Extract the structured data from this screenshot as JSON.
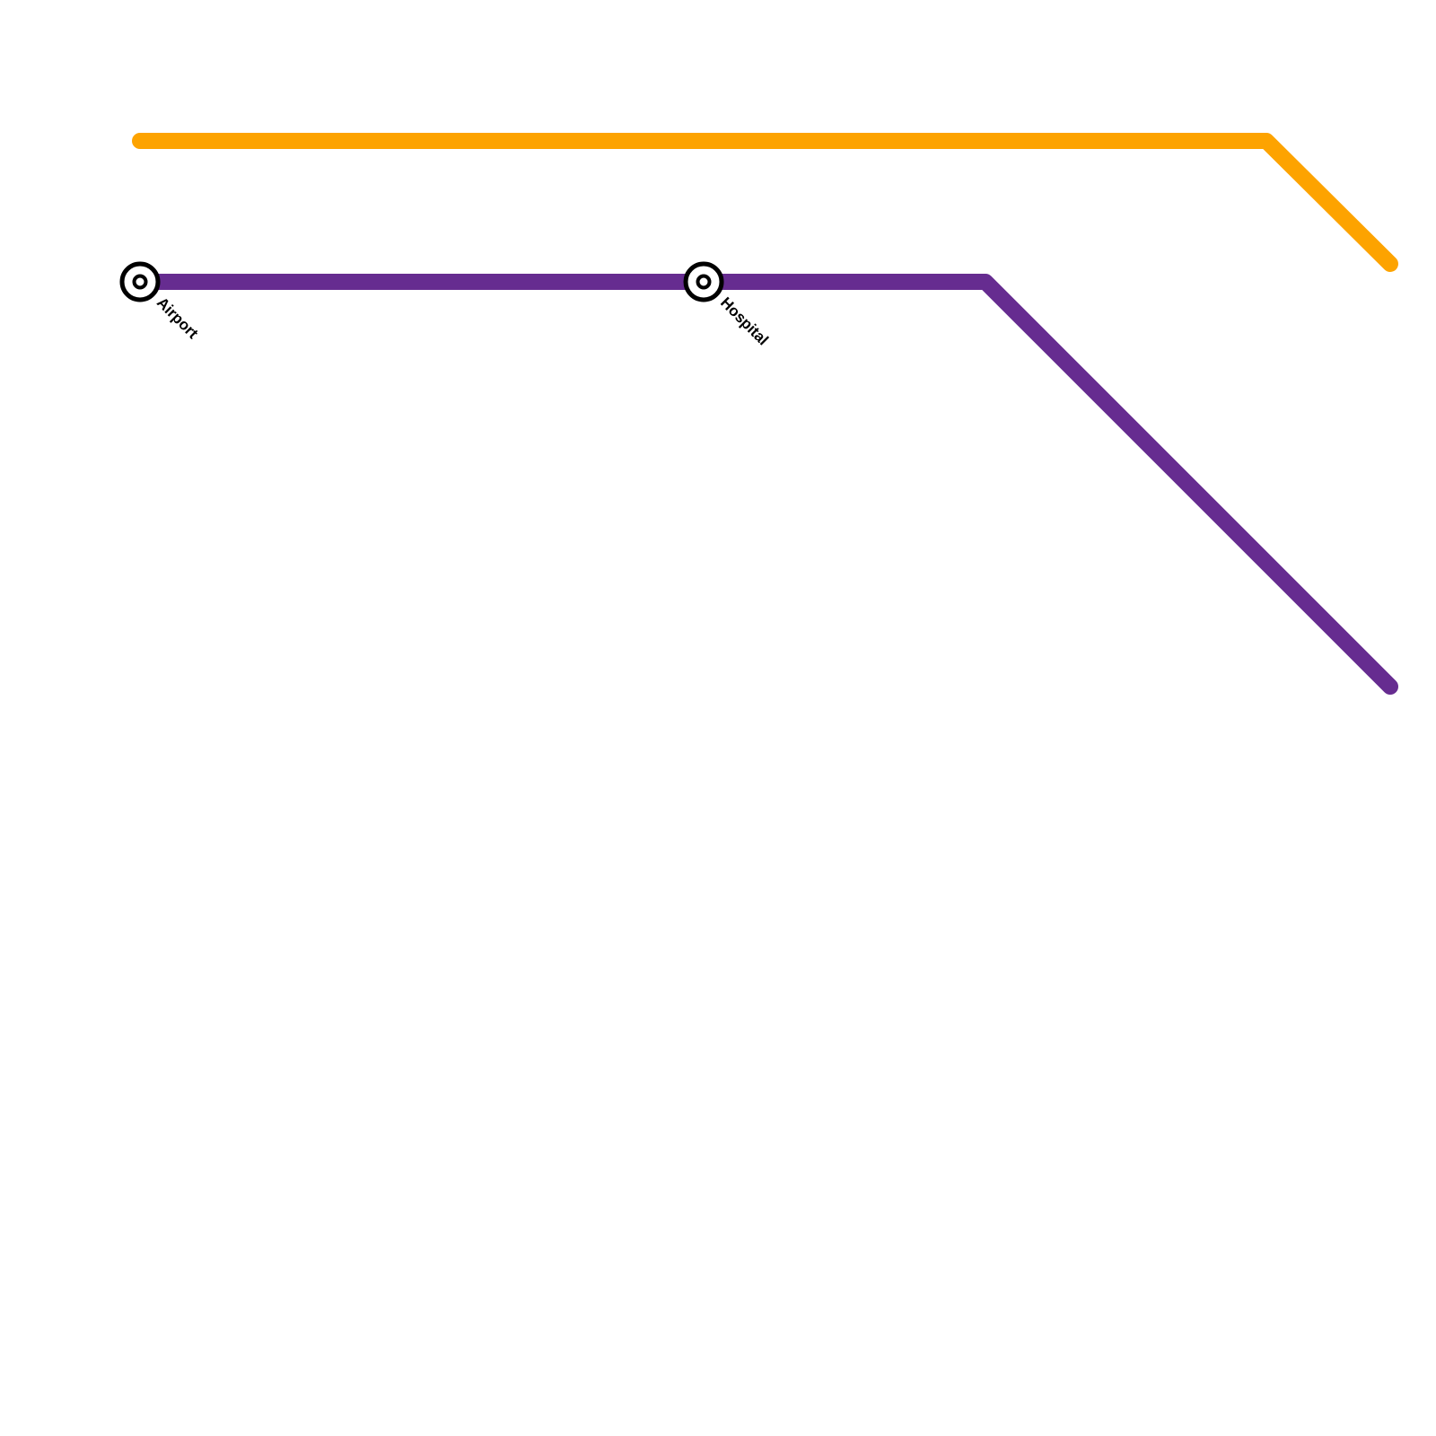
{
  "stations": [
    {
      "label": "Airport"
    },
    {
      "label": "Hospital"
    }
  ]
}
